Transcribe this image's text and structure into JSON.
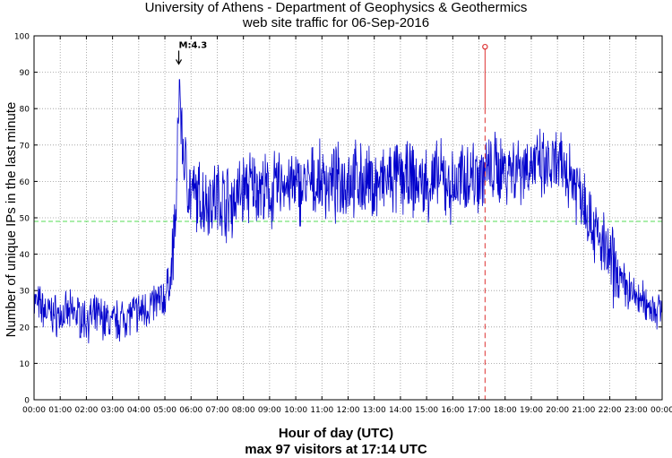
{
  "chart_data": {
    "type": "line",
    "title": "University of Athens - Department of Geophysics & Geothermics",
    "subtitle": "web site traffic for 06-Sep-2016",
    "xlabel": "Hour of day (UTC)",
    "ylabel": "Number of unique IPs in the last minute",
    "footer": "max 97 visitors at 17:14 UTC",
    "xlim": [
      0,
      24
    ],
    "ylim": [
      0,
      100
    ],
    "x_ticks": [
      "00:00",
      "01:00",
      "02:00",
      "03:00",
      "04:00",
      "05:00",
      "06:00",
      "07:00",
      "08:00",
      "09:00",
      "10:00",
      "11:00",
      "12:00",
      "13:00",
      "14:00",
      "15:00",
      "16:00",
      "17:00",
      "18:00",
      "19:00",
      "20:00",
      "21:00",
      "22:00",
      "23:00",
      "00:00"
    ],
    "y_ticks": [
      "0",
      "10",
      "20",
      "30",
      "40",
      "50",
      "60",
      "70",
      "80",
      "90",
      "100"
    ],
    "grid": true,
    "line_color": "#0000cc",
    "series_approx": {
      "x_hours": [
        0,
        0.5,
        1,
        1.5,
        2,
        2.5,
        3,
        3.5,
        4,
        4.5,
        5,
        5.25,
        5.45,
        5.55,
        5.65,
        5.75,
        6,
        6.5,
        7,
        7.5,
        8,
        8.5,
        9,
        9.5,
        10,
        10.5,
        11,
        11.5,
        12,
        12.5,
        13,
        13.5,
        14,
        14.5,
        15,
        15.5,
        16,
        16.5,
        17,
        17.5,
        18,
        18.5,
        19,
        19.5,
        20,
        20.5,
        21,
        21.5,
        22,
        22.5,
        23,
        23.5,
        24
      ],
      "y_values": [
        27,
        24,
        23,
        24,
        22,
        23,
        21,
        23,
        24,
        26,
        28,
        35,
        55,
        90,
        72,
        65,
        56,
        55,
        56,
        54,
        58,
        59,
        56,
        60,
        58,
        59,
        60,
        59,
        61,
        60,
        59,
        60,
        61,
        60,
        59,
        61,
        58,
        62,
        62,
        63,
        64,
        64,
        65,
        63,
        64,
        62,
        56,
        45,
        38,
        32,
        28,
        26,
        24
      ]
    },
    "mean_line": {
      "value": 49,
      "color": "#55dd55",
      "style": "dashed"
    },
    "annotation": {
      "label": "M:4.3",
      "x_hours": 5.53,
      "y": 92
    },
    "max_marker": {
      "x_hours": 17.233,
      "y": 97,
      "color": "#dd3333"
    }
  }
}
